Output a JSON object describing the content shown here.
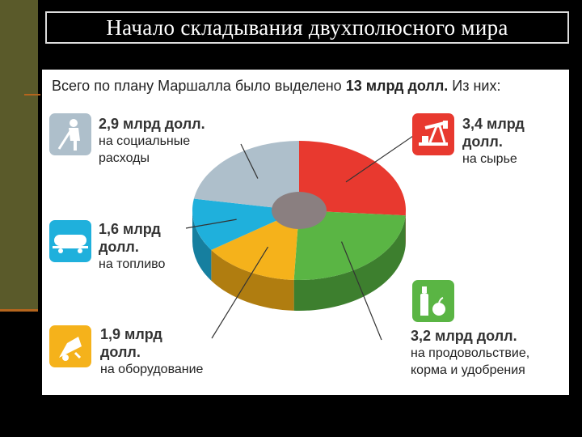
{
  "slide": {
    "title": "Начало складывания двухполюсного мира"
  },
  "caption": {
    "prefix": "Всего по плану Маршалла было выделено ",
    "total": "13 млрд долл.",
    "suffix": " Из них:"
  },
  "chart_data": {
    "type": "pie",
    "title": "Всего по плану Маршалла было выделено 13 млрд долл. Из них:",
    "unit": "млрд долл.",
    "total": 13,
    "slices": [
      {
        "value": 3.4,
        "amount_label": "3,4 млрд долл.",
        "amount_lines": [
          "3,4 млрд",
          "долл."
        ],
        "desc_lines": [
          "на сырье"
        ],
        "color": "#e8392f",
        "side_color": "#a32a22",
        "icon": "oil-pump-icon"
      },
      {
        "value": 3.2,
        "amount_label": "3,2 млрд долл.",
        "amount_lines": [
          "3,2 млрд долл."
        ],
        "desc_lines": [
          "на продовольствие,",
          "корма и удобрения"
        ],
        "color": "#5ab544",
        "side_color": "#3d7f2e",
        "icon": "bottle-apple-icon"
      },
      {
        "value": 1.9,
        "amount_label": "1,9 млрд долл.",
        "amount_lines": [
          "1,9 млрд",
          "долл."
        ],
        "desc_lines": [
          "на оборудование"
        ],
        "color": "#f5b21b",
        "side_color": "#b07d10",
        "icon": "drill-icon"
      },
      {
        "value": 1.6,
        "amount_label": "1,6 млрд долл.",
        "amount_lines": [
          "1,6 млрд",
          "долл."
        ],
        "desc_lines": [
          "на топливо"
        ],
        "color": "#1fb0dc",
        "side_color": "#167f9f",
        "icon": "tank-car-icon"
      },
      {
        "value": 2.9,
        "amount_label": "2,9 млрд долл.",
        "amount_lines": [
          "2,9 млрд долл."
        ],
        "desc_lines": [
          "на социальные",
          "расходы"
        ],
        "color": "#aebfcb",
        "side_color": "#7d8e9a",
        "icon": "worker-icon"
      }
    ],
    "hub_color": "#8a7f80"
  }
}
